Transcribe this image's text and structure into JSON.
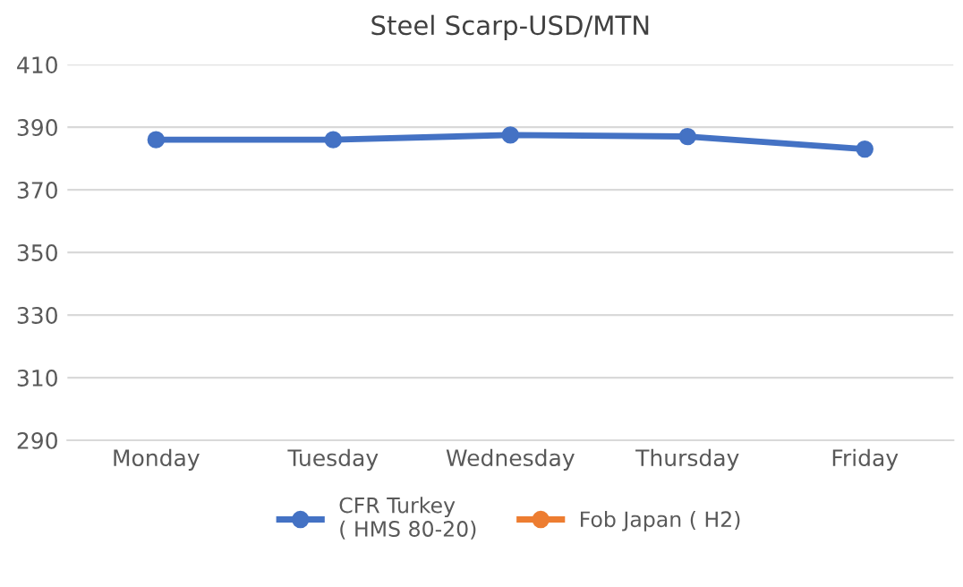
{
  "chart_data": {
    "type": "line",
    "title": "Steel Scarp-USD/MTN",
    "categories": [
      "Monday",
      "Tuesday",
      "Wednesday",
      "Thursday",
      "Friday"
    ],
    "series": [
      {
        "name": "CFR Turkey\n( HMS 80-20)",
        "color": "#4472c4",
        "values": [
          386,
          386,
          387.5,
          387,
          383
        ]
      },
      {
        "name": "Fob Japan ( H2)",
        "color": "#ed7d31",
        "values": [
          null,
          null,
          null,
          null,
          null
        ]
      }
    ],
    "ylim": [
      290,
      410
    ],
    "yticks": [
      290,
      310,
      330,
      350,
      370,
      390,
      410
    ],
    "grid": "y",
    "legend": "bottom",
    "marker": "circle",
    "line_style": "solid"
  }
}
